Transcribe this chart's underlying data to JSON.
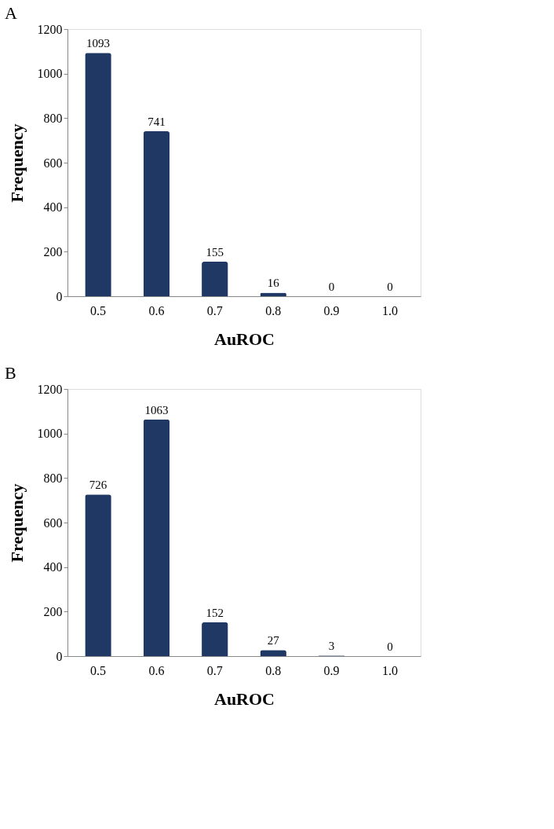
{
  "chart_data": [
    {
      "type": "bar",
      "title": "A",
      "xlabel": "AuROC",
      "ylabel": "Frequency",
      "categories": [
        "0.5",
        "0.6",
        "0.7",
        "0.8",
        "0.9",
        "1.0"
      ],
      "values": [
        1093,
        741,
        155,
        16,
        0,
        0
      ],
      "color": "#1f3864",
      "ylim": [
        0,
        1200
      ],
      "yticks": [
        0,
        200,
        400,
        600,
        800,
        1000,
        1200
      ],
      "data_labels": true,
      "grid": false
    },
    {
      "type": "bar",
      "title": "B",
      "xlabel": "AuROC",
      "ylabel": "Frequency",
      "categories": [
        "0.5",
        "0.6",
        "0.7",
        "0.8",
        "0.9",
        "1.0"
      ],
      "values": [
        726,
        1063,
        152,
        27,
        3,
        0
      ],
      "color": "#1f3864",
      "ylim": [
        0,
        1200
      ],
      "yticks": [
        0,
        200,
        400,
        600,
        800,
        1000,
        1200
      ],
      "data_labels": true,
      "grid": false
    }
  ]
}
